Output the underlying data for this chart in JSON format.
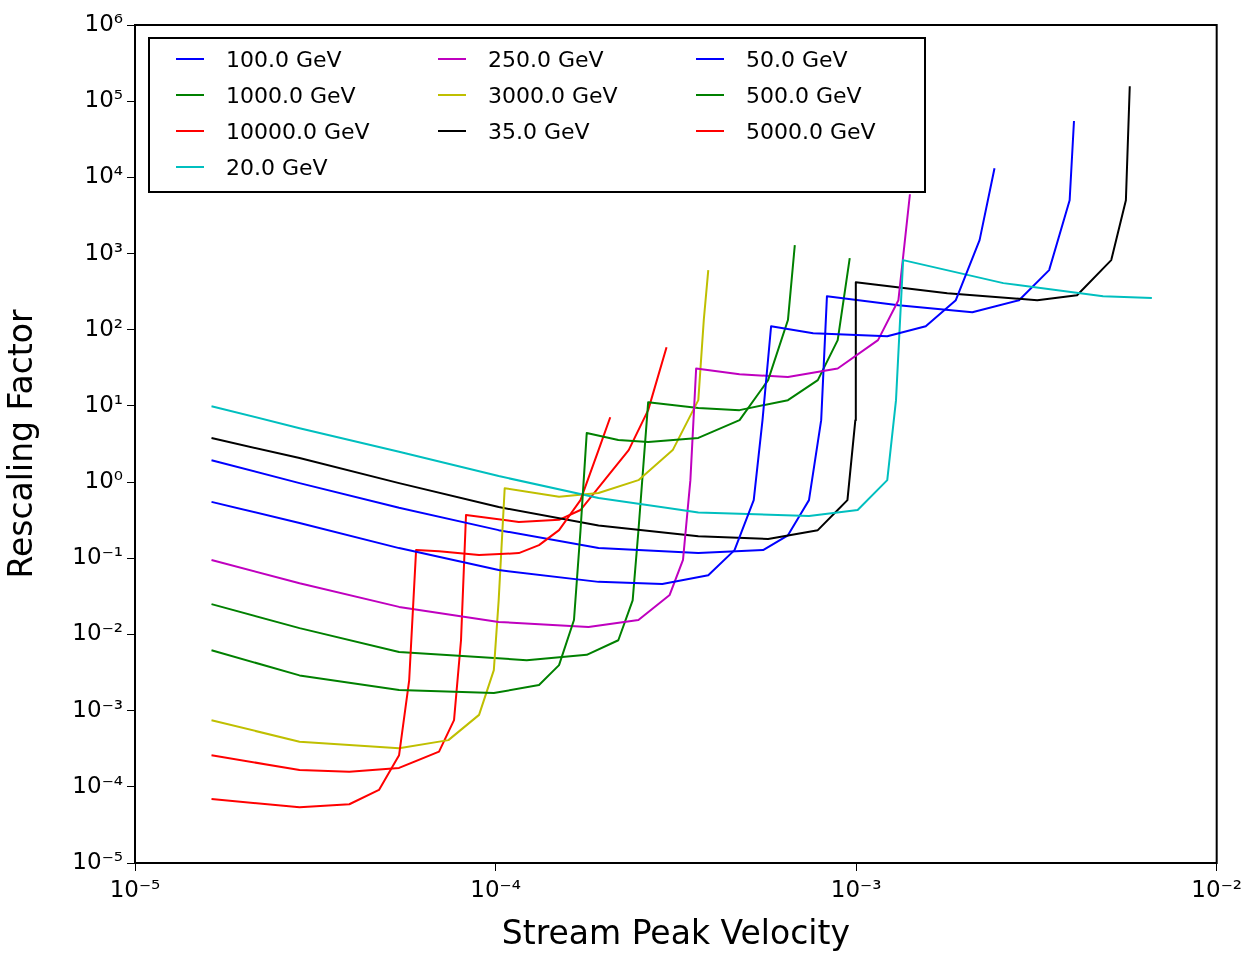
{
  "chart_data": {
    "type": "line",
    "xlabel": "Stream Peak Velocity",
    "ylabel": "Rescaling Factor",
    "log": "xy",
    "legend": "top left",
    "xlim": [
      1e-05,
      0.01
    ],
    "ylim": [
      1e-05,
      1000000.0
    ],
    "xticks": [
      {
        "value": 1e-05,
        "label": "10⁻⁵"
      },
      {
        "value": 0.0001,
        "label": "10⁻⁴"
      },
      {
        "value": 0.001,
        "label": "10⁻³"
      },
      {
        "value": 0.01,
        "label": "10⁻²"
      }
    ],
    "yticks": [
      {
        "value": 1e-05,
        "label": "10⁻⁵"
      },
      {
        "value": 0.0001,
        "label": "10⁻⁴"
      },
      {
        "value": 0.001,
        "label": "10⁻³"
      },
      {
        "value": 0.01,
        "label": "10⁻²"
      },
      {
        "value": 0.1,
        "label": "10⁻¹"
      },
      {
        "value": 1,
        "label": "10⁰"
      },
      {
        "value": 10,
        "label": "10¹"
      },
      {
        "value": 100,
        "label": "10²"
      },
      {
        "value": 1000,
        "label": "10³"
      },
      {
        "value": 10000,
        "label": "10⁴"
      },
      {
        "value": 100000,
        "label": "10⁵"
      },
      {
        "value": 1000000,
        "label": "10⁶"
      }
    ],
    "series": [
      {
        "name": "100.0 GeV",
        "color": "#0000ff",
        "x": [
          1.63e-05,
          2.86e-05,
          5.4e-05,
          0.000102,
          0.000193,
          0.00029,
          0.000389,
          0.00046,
          0.00052,
          0.00055,
          0.000581,
          0.00076,
          0.00122,
          0.00156,
          0.00189,
          0.0022,
          0.00242
        ],
        "values": [
          0.55,
          0.29,
          0.136,
          0.07,
          0.049,
          0.046,
          0.06,
          0.128,
          0.58,
          6.5,
          111,
          90,
          82,
          111,
          244,
          1500,
          13200
        ]
      },
      {
        "name": "1000.0 GeV",
        "color": "#008000",
        "x": [
          1.63e-05,
          2.86e-05,
          5.4e-05,
          9.89e-05,
          0.000132,
          0.00015,
          0.000165,
          0.000172,
          0.000179,
          0.000219,
          0.000265,
          0.000365,
          0.000475,
          0.00057,
          0.000647,
          0.000676
        ],
        "values": [
          0.0062,
          0.0029,
          0.00186,
          0.0017,
          0.00217,
          0.00396,
          0.0155,
          0.23,
          4.4,
          3.56,
          3.35,
          3.8,
          6.5,
          21.8,
          134,
          1290
        ]
      },
      {
        "name": "10000.0 GeV",
        "color": "#ff0000",
        "x": [
          1.63e-05,
          2.86e-05,
          3.93e-05,
          4.75e-05,
          5.4e-05,
          5.76e-05,
          6.02e-05,
          6.97e-05,
          9e-05,
          0.000116,
          0.000132,
          0.00015,
          0.000172,
          0.000193,
          0.000208
        ],
        "values": [
          6.9e-05,
          5.4e-05,
          5.9e-05,
          9.1e-05,
          0.00026,
          0.0025,
          0.128,
          0.124,
          0.11,
          0.117,
          0.149,
          0.234,
          0.58,
          2.63,
          7.1
        ]
      },
      {
        "name": "20.0 GeV",
        "color": "#00bfbf",
        "x": [
          1.63e-05,
          2.86e-05,
          5.4e-05,
          0.000102,
          0.000193,
          0.000365,
          0.00074,
          0.00101,
          0.00122,
          0.00129,
          0.00135,
          0.00256,
          0.00484,
          0.00661
        ],
        "values": [
          9.9,
          5.1,
          2.5,
          1.2,
          0.62,
          0.4,
          0.36,
          0.43,
          1.06,
          11.9,
          820,
          409,
          276,
          260
        ]
      },
      {
        "name": "250.0 GeV",
        "color": "#bf00bf",
        "x": [
          1.63e-05,
          2.86e-05,
          5.4e-05,
          0.000102,
          0.000181,
          0.000249,
          0.000304,
          0.000331,
          0.000347,
          0.00036,
          0.000475,
          0.000647,
          0.000889,
          0.00115,
          0.00131,
          0.00141
        ],
        "values": [
          0.095,
          0.047,
          0.023,
          0.0146,
          0.0125,
          0.0155,
          0.033,
          0.095,
          1.06,
          31,
          26,
          23.9,
          31,
          73,
          244,
          6000
        ]
      },
      {
        "name": "3000.0 GeV",
        "color": "#bfbf00",
        "x": [
          1.63e-05,
          2.86e-05,
          5.4e-05,
          7.4e-05,
          9e-05,
          9.89e-05,
          0.000102,
          0.000106,
          0.00015,
          0.000193,
          0.000249,
          0.00031,
          0.000365,
          0.000378,
          0.000389
        ],
        "values": [
          0.00075,
          0.00039,
          0.00032,
          0.00041,
          0.00088,
          0.0034,
          0.028,
          0.83,
          0.64,
          0.72,
          1.06,
          2.63,
          11.9,
          134,
          606
        ]
      },
      {
        "name": "35.0 GeV",
        "color": "#000000",
        "x": [
          1.63e-05,
          2.86e-05,
          5.4e-05,
          0.000102,
          0.000193,
          0.000365,
          0.00057,
          0.000783,
          0.000946,
          0.000995,
          0.000998,
          0.00179,
          0.00318,
          0.0041,
          0.0051,
          0.0056,
          0.00574
        ],
        "values": [
          3.78,
          2.07,
          0.97,
          0.47,
          0.27,
          0.195,
          0.179,
          0.234,
          0.58,
          6.5,
          420,
          302,
          244,
          284,
          820,
          5000,
          157000
        ]
      },
      {
        "name": "50.0 GeV",
        "color": "#0000ff",
        "x": [
          1.63e-05,
          2.86e-05,
          5.4e-05,
          0.000102,
          0.000193,
          0.000365,
          0.000552,
          0.000647,
          0.00074,
          0.0008,
          0.00083,
          0.00131,
          0.0021,
          0.00283,
          0.00343,
          0.00391,
          0.00402
        ],
        "values": [
          1.94,
          0.97,
          0.46,
          0.234,
          0.136,
          0.117,
          0.128,
          0.2,
          0.58,
          6.5,
          276,
          210,
          170,
          244,
          606,
          5000,
          55000
        ]
      },
      {
        "name": "500.0 GeV",
        "color": "#008000",
        "x": [
          1.63e-05,
          2.86e-05,
          5.4e-05,
          0.000122,
          0.000179,
          0.000219,
          0.00024,
          0.000249,
          0.000265,
          0.000365,
          0.000475,
          0.000647,
          0.000783,
          0.000889,
          0.00096
        ],
        "values": [
          0.025,
          0.0121,
          0.0059,
          0.0046,
          0.0054,
          0.0084,
          0.028,
          0.23,
          11.2,
          9.4,
          8.8,
          11.9,
          21.8,
          73,
          870
        ]
      },
      {
        "name": "5000.0 GeV",
        "color": "#ff0000",
        "x": [
          1.63e-05,
          2.86e-05,
          3.93e-05,
          5.4e-05,
          6.97e-05,
          7.67e-05,
          8.02e-05,
          8.28e-05,
          0.000116,
          0.00015,
          0.000172,
          0.000206,
          0.000234,
          0.000265,
          0.000298
        ],
        "values": [
          0.00026,
          0.000166,
          0.000158,
          0.000177,
          0.00029,
          0.00075,
          0.0084,
          0.37,
          0.3,
          0.32,
          0.43,
          1.24,
          2.63,
          8.8,
          59
        ]
      }
    ]
  }
}
